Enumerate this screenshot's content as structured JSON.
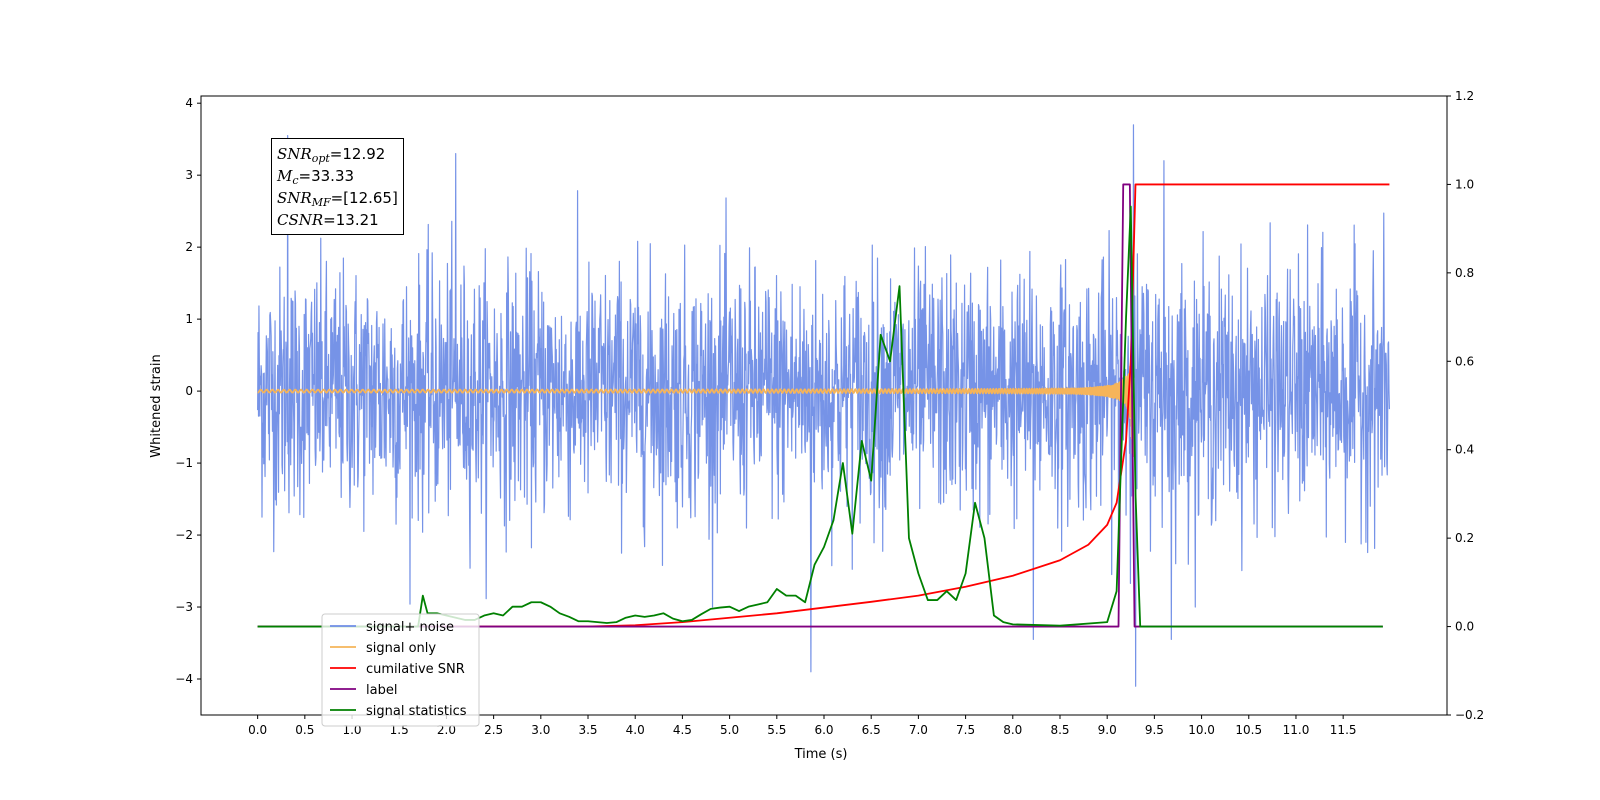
{
  "chart_data": {
    "type": "line",
    "xlabel": "Time (s)",
    "ylabel": "Whitened strain",
    "x_range": [
      -0.6,
      12.6
    ],
    "x_ticks": [
      "0.0",
      "0.5",
      "1.0",
      "1.5",
      "2.0",
      "2.5",
      "3.0",
      "3.5",
      "4.0",
      "4.5",
      "5.0",
      "5.5",
      "6.0",
      "6.5",
      "7.0",
      "7.5",
      "8.0",
      "8.5",
      "9.0",
      "9.5",
      "10.0",
      "10.5",
      "11.0",
      "11.5"
    ],
    "y_left_range": [
      -4.5,
      4.1
    ],
    "y_left_ticks": [
      "4",
      "3",
      "2",
      "1",
      "0",
      "−1",
      "−2",
      "−3",
      "−4"
    ],
    "y_right_range": [
      -0.2,
      1.2
    ],
    "y_right_ticks": [
      "1.2",
      "1.0",
      "0.8",
      "0.6",
      "0.4",
      "0.2",
      "0.0",
      "−0.2"
    ],
    "grid": false,
    "legend_position": "lower-left",
    "annotation": {
      "snr_opt": "=12.92",
      "mc": "=33.33",
      "snr_mf": "=[12.65]",
      "csnr": "=13.21"
    },
    "series": [
      {
        "name": "signal+ noise",
        "axis": "left",
        "color": "#6f8de6",
        "x_start": 0.0,
        "x_end": 11.99,
        "noise_std": 0.85,
        "extremes": [
          [
            0.32,
            3.55
          ],
          [
            2.1,
            3.3
          ],
          [
            5.86,
            -3.9
          ],
          [
            8.22,
            -3.45
          ],
          [
            9.12,
            -3.25
          ],
          [
            9.28,
            3.7
          ],
          [
            9.3,
            -4.1
          ],
          [
            9.6,
            3.2
          ],
          [
            9.68,
            -3.45
          ]
        ]
      },
      {
        "name": "signal only",
        "axis": "left",
        "color": "#f5b45a",
        "x_start": 0.0,
        "x_end": 9.29,
        "amplitude_start": 0.02,
        "amplitude_peak": 0.95,
        "merger_time": 9.28
      },
      {
        "name": "cumilative SNR",
        "axis": "right",
        "color": "#ff0000",
        "points": [
          [
            0,
            0
          ],
          [
            3.5,
            0
          ],
          [
            4.0,
            0.003
          ],
          [
            4.5,
            0.01
          ],
          [
            5.0,
            0.02
          ],
          [
            5.5,
            0.03
          ],
          [
            6.0,
            0.043
          ],
          [
            6.5,
            0.056
          ],
          [
            7.0,
            0.07
          ],
          [
            7.5,
            0.09
          ],
          [
            8.0,
            0.115
          ],
          [
            8.5,
            0.15
          ],
          [
            8.8,
            0.185
          ],
          [
            9.0,
            0.23
          ],
          [
            9.1,
            0.28
          ],
          [
            9.2,
            0.42
          ],
          [
            9.25,
            0.6
          ],
          [
            9.3,
            1.0
          ],
          [
            11.99,
            1.0
          ]
        ]
      },
      {
        "name": "label",
        "axis": "right",
        "color": "#800080",
        "points": [
          [
            0,
            0
          ],
          [
            9.12,
            0
          ],
          [
            9.17,
            1.0
          ],
          [
            9.24,
            1.0
          ],
          [
            9.29,
            0
          ],
          [
            11.92,
            0
          ]
        ]
      },
      {
        "name": "signal statistics",
        "axis": "right",
        "color": "#008000",
        "points": [
          [
            0,
            0
          ],
          [
            1.7,
            0
          ],
          [
            1.75,
            0.07
          ],
          [
            1.8,
            0.03
          ],
          [
            1.9,
            0.03
          ],
          [
            2.0,
            0.025
          ],
          [
            2.1,
            0.02
          ],
          [
            2.2,
            0.015
          ],
          [
            2.3,
            0.015
          ],
          [
            2.4,
            0.025
          ],
          [
            2.5,
            0.03
          ],
          [
            2.6,
            0.025
          ],
          [
            2.7,
            0.045
          ],
          [
            2.8,
            0.045
          ],
          [
            2.9,
            0.055
          ],
          [
            3.0,
            0.055
          ],
          [
            3.1,
            0.045
          ],
          [
            3.2,
            0.03
          ],
          [
            3.3,
            0.022
          ],
          [
            3.4,
            0.012
          ],
          [
            3.5,
            0.012
          ],
          [
            3.6,
            0.01
          ],
          [
            3.7,
            0.008
          ],
          [
            3.8,
            0.01
          ],
          [
            3.9,
            0.02
          ],
          [
            4.0,
            0.025
          ],
          [
            4.1,
            0.022
          ],
          [
            4.2,
            0.025
          ],
          [
            4.3,
            0.03
          ],
          [
            4.4,
            0.018
          ],
          [
            4.5,
            0.012
          ],
          [
            4.6,
            0.015
          ],
          [
            4.7,
            0.028
          ],
          [
            4.8,
            0.04
          ],
          [
            4.9,
            0.043
          ],
          [
            5.0,
            0.045
          ],
          [
            5.1,
            0.035
          ],
          [
            5.2,
            0.045
          ],
          [
            5.3,
            0.05
          ],
          [
            5.4,
            0.055
          ],
          [
            5.5,
            0.085
          ],
          [
            5.6,
            0.07
          ],
          [
            5.7,
            0.07
          ],
          [
            5.8,
            0.055
          ],
          [
            5.9,
            0.14
          ],
          [
            6.0,
            0.18
          ],
          [
            6.1,
            0.24
          ],
          [
            6.2,
            0.37
          ],
          [
            6.3,
            0.21
          ],
          [
            6.4,
            0.42
          ],
          [
            6.5,
            0.33
          ],
          [
            6.6,
            0.66
          ],
          [
            6.7,
            0.6
          ],
          [
            6.8,
            0.77
          ],
          [
            6.9,
            0.2
          ],
          [
            7.0,
            0.12
          ],
          [
            7.1,
            0.06
          ],
          [
            7.2,
            0.06
          ],
          [
            7.3,
            0.08
          ],
          [
            7.4,
            0.06
          ],
          [
            7.5,
            0.12
          ],
          [
            7.6,
            0.28
          ],
          [
            7.7,
            0.2
          ],
          [
            7.8,
            0.025
          ],
          [
            7.9,
            0.01
          ],
          [
            8.0,
            0.005
          ],
          [
            8.5,
            0.002
          ],
          [
            9.0,
            0.01
          ],
          [
            9.1,
            0.08
          ],
          [
            9.2,
            0.7
          ],
          [
            9.25,
            0.95
          ],
          [
            9.3,
            0.3
          ],
          [
            9.35,
            0.0
          ],
          [
            11.92,
            0.0
          ]
        ]
      }
    ]
  }
}
